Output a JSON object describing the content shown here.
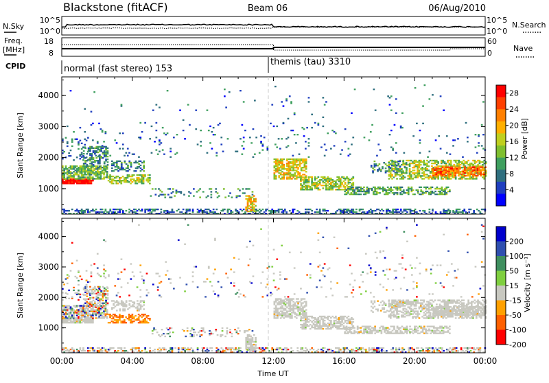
{
  "header": {
    "title": "Blackstone (fitACF)",
    "beam": "Beam 06",
    "date": "06/Aug/2010"
  },
  "status_panels": {
    "nsky_label": "N.Sky",
    "nsearch_label": "N.Search",
    "noise_ticks": [
      "10^5",
      "10^0"
    ],
    "noise_right_ticks": [
      "10^5",
      "10^0"
    ],
    "freq_label_top": "Freq.",
    "freq_label_unit": "[MHz]",
    "freq_ticks": [
      "18",
      "8"
    ],
    "nave_label": "Nave",
    "nave_ticks": [
      "60",
      "0"
    ],
    "cpid_label": "CPID",
    "cpid_segments": [
      {
        "label": "normal (fast stereo) 153",
        "start_hour": 0
      },
      {
        "label": "themis (tau) 3310",
        "start_hour": 12
      }
    ]
  },
  "chart_data": [
    {
      "type": "heatmap",
      "name": "power",
      "ylabel": "Slant Range [km]",
      "ylim": [
        180,
        4600
      ],
      "yticks": [
        1000,
        2000,
        3000,
        4000
      ],
      "xlim": [
        0,
        24
      ],
      "xunit": "hours UT",
      "colorbar_label": "Power [dB]",
      "colorbar_ticks": [
        "28",
        "24",
        "20",
        "16",
        "12",
        "8",
        "4"
      ],
      "colorbar_range": [
        0,
        30
      ],
      "colors": [
        "#0000ff",
        "#1f3fbf",
        "#2f6f7f",
        "#3f9f5f",
        "#7fbf2f",
        "#bfcf1f",
        "#ffaf00",
        "#ff7f00",
        "#ff3f00",
        "#ff0000"
      ]
    },
    {
      "type": "heatmap",
      "name": "velocity",
      "ylabel": "Slant Range [km]",
      "ylim": [
        180,
        4600
      ],
      "yticks": [
        1000,
        2000,
        3000,
        4000
      ],
      "xlim": [
        0,
        24
      ],
      "xunit": "hours UT",
      "colorbar_label": "Velocity [m s⁻¹]",
      "colorbar_ticks": [
        "200",
        "100",
        "50",
        "15",
        "-15",
        "-50",
        "-100",
        "-200"
      ],
      "colors": [
        "#0000cc",
        "#2f4faf",
        "#3f8f5f",
        "#7fcf3f",
        "#c8c8c0",
        "#ffa000",
        "#ff6000",
        "#ff0000"
      ],
      "ground_scatter_color": "#c8c8c0"
    }
  ],
  "x_axis": {
    "label": "Time UT",
    "ticks": [
      "00:00",
      "04:00",
      "08:00",
      "12:00",
      "16:00",
      "20:00",
      "00:00"
    ]
  }
}
